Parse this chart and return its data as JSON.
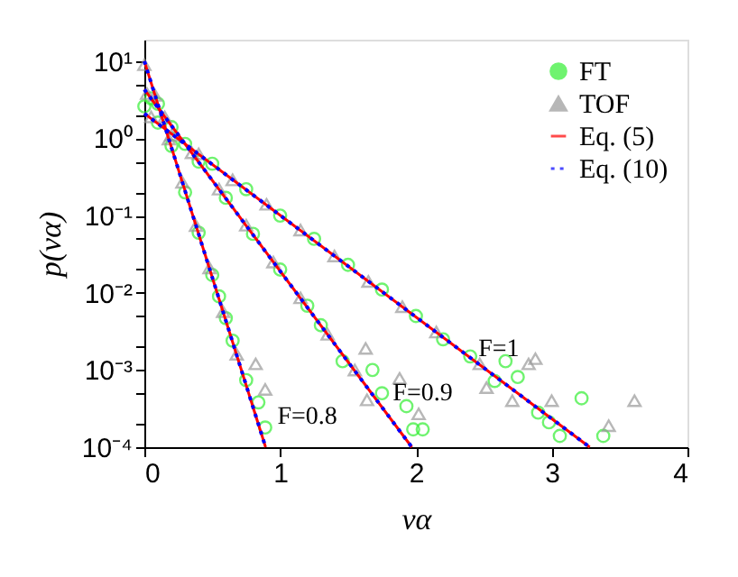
{
  "chart_data": {
    "type": "scatter",
    "xlabel": "vα",
    "ylabel": "p(vα)",
    "log": "y",
    "grid": false,
    "legend": "top right",
    "xlim": [
      0,
      4
    ],
    "xticks": [
      0,
      1,
      2,
      3,
      4
    ],
    "ylim": [
      0.0001,
      19
    ],
    "yticks": [
      {
        "value": 10,
        "label": "10¹"
      },
      {
        "value": 5,
        "label": null
      },
      {
        "value": 2,
        "label": null
      },
      {
        "value": 1,
        "label": "10⁰"
      },
      {
        "value": 0.5,
        "label": null
      },
      {
        "value": 0.2,
        "label": null
      },
      {
        "value": 0.1,
        "label": "10⁻¹"
      },
      {
        "value": 0.05,
        "label": null
      },
      {
        "value": 0.02,
        "label": null
      },
      {
        "value": 0.01,
        "label": "10⁻²"
      },
      {
        "value": 0.005,
        "label": null
      },
      {
        "value": 0.002,
        "label": null
      },
      {
        "value": 0.001,
        "label": "10⁻³"
      },
      {
        "value": 0.0005,
        "label": null
      },
      {
        "value": 0.0002,
        "label": null
      },
      {
        "value": 0.0001,
        "label": "10⁻⁴"
      }
    ],
    "annotations": [
      {
        "text": "F=0.8",
        "x": 0.82,
        "y": 0.00025
      },
      {
        "text": "F=0.9",
        "x": 1.67,
        "y": 0.0005
      },
      {
        "text": "F=1",
        "x": 2.3,
        "y": 0.0019
      }
    ],
    "series": [
      {
        "name": "FT",
        "marker": "circle",
        "color": "#33ee33",
        "x": [
          0,
          0.1,
          0.2,
          0.3,
          0.4,
          0.5,
          0.55,
          0.6,
          0.65,
          0.75,
          0.84,
          0.89,
          0.05,
          0.2,
          0.4,
          0.6,
          0.8,
          1.0,
          1.2,
          1.3,
          1.46,
          1.68,
          1.75,
          1.93,
          1.98,
          2.05,
          0.1,
          0.3,
          0.5,
          0.75,
          1.0,
          1.25,
          1.5,
          1.75,
          2.0,
          2.2,
          2.4,
          2.58,
          2.66,
          2.75,
          2.9,
          2.98,
          3.06,
          3.22,
          3.38
        ],
        "values": [
          2.6,
          2.8,
          0.8,
          0.2,
          0.06,
          0.017,
          0.009,
          0.0047,
          0.0024,
          0.00074,
          0.00038,
          0.00018,
          3.3,
          1.4,
          0.5,
          0.17,
          0.058,
          0.02,
          0.0068,
          0.0038,
          0.0013,
          0.001,
          0.0005,
          0.00034,
          0.00017,
          0.00017,
          1.6,
          0.85,
          0.47,
          0.22,
          0.1,
          0.05,
          0.023,
          0.011,
          0.005,
          0.0025,
          0.0015,
          0.00072,
          0.0013,
          0.00081,
          0.00028,
          0.00021,
          0.00014,
          0.00043,
          0.00014
        ]
      },
      {
        "name": "TOF",
        "marker": "triangle",
        "color": "#999999",
        "x": [
          0,
          0.08,
          0.18,
          0.28,
          0.38,
          0.48,
          0.58,
          0.68,
          0.82,
          0.89,
          0.02,
          0.15,
          0.35,
          0.55,
          0.75,
          0.95,
          1.15,
          1.35,
          1.55,
          1.63,
          1.64,
          1.88,
          2.02,
          0.05,
          0.2,
          0.4,
          0.65,
          0.9,
          1.15,
          1.4,
          1.65,
          1.9,
          2.15,
          2.47,
          2.52,
          2.71,
          2.83,
          2.88,
          3.0,
          3.42,
          3.61
        ],
        "values": [
          9,
          3.6,
          0.98,
          0.27,
          0.074,
          0.021,
          0.0057,
          0.0016,
          0.0012,
          0.00056,
          3.8,
          1.9,
          0.65,
          0.22,
          0.075,
          0.025,
          0.0086,
          0.0029,
          0.001,
          0.0019,
          0.00041,
          0.00078,
          0.00027,
          1.9,
          1.1,
          0.63,
          0.29,
          0.14,
          0.065,
          0.03,
          0.014,
          0.0066,
          0.0031,
          0.0012,
          0.00059,
          0.0004,
          0.0012,
          0.0014,
          0.0004,
          0.00019,
          0.0004
        ]
      },
      {
        "name": "Eq. (5)",
        "type": "line",
        "line_style": "solid",
        "color": "#ff0000",
        "x": [
          0,
          0.893
        ],
        "values": [
          10,
          0.0001
        ]
      },
      {
        "type": "line",
        "line_style": "solid",
        "color": "#ff0000",
        "x": [
          0,
          1.97
        ],
        "values": [
          4.3,
          0.0001
        ]
      },
      {
        "type": "line",
        "line_style": "solid",
        "color": "#ff0000",
        "x": [
          0,
          3.28
        ],
        "values": [
          2.1,
          0.0001
        ]
      },
      {
        "name": "Eq. (10)",
        "type": "line",
        "line_style": "dotted",
        "color": "#0000ff",
        "x": [
          0,
          0.893
        ],
        "values": [
          10,
          0.0001
        ]
      },
      {
        "type": "line",
        "line_style": "dotted",
        "color": "#0000ff",
        "x": [
          0,
          1.97
        ],
        "values": [
          4.3,
          0.0001
        ]
      },
      {
        "type": "line",
        "line_style": "dotted",
        "color": "#0000ff",
        "x": [
          0,
          3.28
        ],
        "values": [
          2.1,
          0.0001
        ]
      }
    ]
  }
}
